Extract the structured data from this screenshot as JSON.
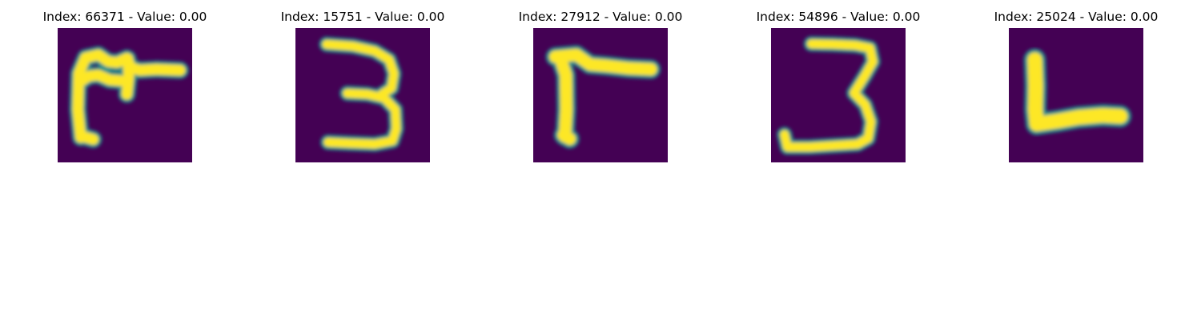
{
  "figure": {
    "background": "#ffffff",
    "image_colormap": {
      "low": "#440154",
      "mid": "#21918c",
      "high": "#fde725"
    },
    "panels": [
      {
        "title": "Index: 66371 - Value: 0.00",
        "depicts": "handwritten glyph resembling an r with a crossbar"
      },
      {
        "title": "Index: 15751 - Value: 0.00",
        "depicts": "handwritten digit 3"
      },
      {
        "title": "Index: 27912 - Value: 0.00",
        "depicts": "handwritten glyph resembling an inverted L"
      },
      {
        "title": "Index: 54896 - Value: 0.00",
        "depicts": "handwritten digit 3"
      },
      {
        "title": "Index: 25024 - Value: 0.00",
        "depicts": "handwritten letter L"
      }
    ]
  }
}
